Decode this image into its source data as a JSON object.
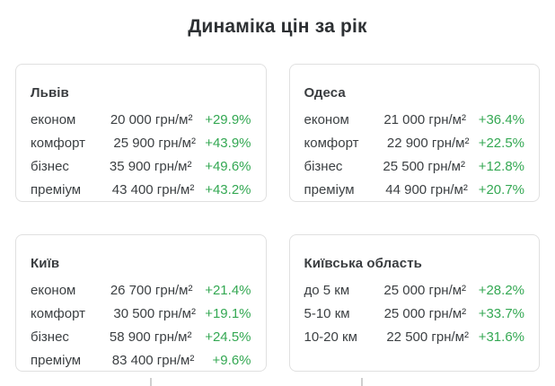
{
  "title": "Динаміка цін за рік",
  "colors": {
    "accent_green": "#34a853",
    "text_dark": "#3c4043",
    "card_border": "#e0e0e0",
    "background": "#ffffff"
  },
  "cards": [
    {
      "title": "Львів",
      "rows": [
        {
          "label": "економ",
          "value": "20 000 грн/м²",
          "change": "+29.9%"
        },
        {
          "label": "комфорт",
          "value": "25 900 грн/м²",
          "change": "+43.9%"
        },
        {
          "label": "бізнес",
          "value": "35 900 грн/м²",
          "change": "+49.6%"
        },
        {
          "label": "преміум",
          "value": "43 400 грн/м²",
          "change": "+43.2%"
        }
      ]
    },
    {
      "title": "Одеса",
      "rows": [
        {
          "label": "економ",
          "value": "21 000 грн/м²",
          "change": "+36.4%"
        },
        {
          "label": "комфорт",
          "value": "22 900 грн/м²",
          "change": "+22.5%"
        },
        {
          "label": "бізнес",
          "value": "25 500 грн/м²",
          "change": "+12.8%"
        },
        {
          "label": "преміум",
          "value": "44 900 грн/м²",
          "change": "+20.7%"
        }
      ]
    },
    {
      "title": "Київ",
      "rows": [
        {
          "label": "економ",
          "value": "26 700 грн/м²",
          "change": "+21.4%"
        },
        {
          "label": "комфорт",
          "value": "30 500 грн/м²",
          "change": "+19.1%"
        },
        {
          "label": "бізнес",
          "value": "58 900 грн/м²",
          "change": "+24.5%"
        },
        {
          "label": "преміум",
          "value": "83 400 грн/м²",
          "change": "+9.6%"
        }
      ]
    },
    {
      "title": "Київська область",
      "rows": [
        {
          "label": "до 5 км",
          "value": "25 000 грн/м²",
          "change": "+28.2%"
        },
        {
          "label": "5-10 км",
          "value": "25 000 грн/м²",
          "change": "+33.7%"
        },
        {
          "label": "10-20 км",
          "value": "22 500 грн/м²",
          "change": "+31.6%"
        }
      ]
    }
  ]
}
